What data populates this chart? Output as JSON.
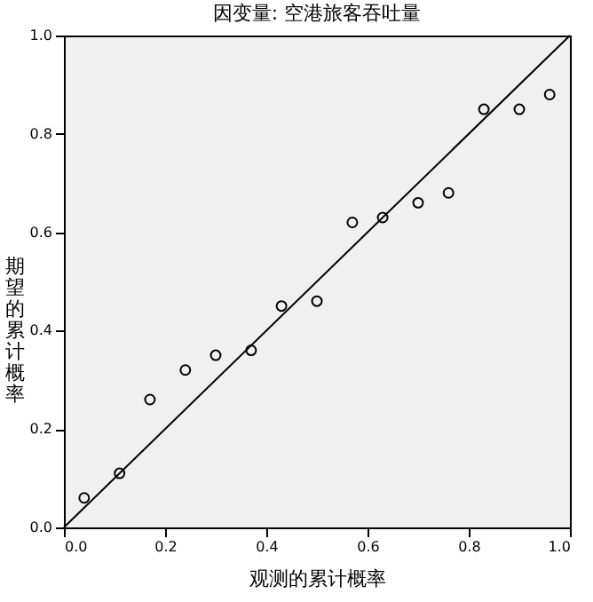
{
  "chart_data": {
    "type": "scatter",
    "title": "因变量: 空港旅客吞吐量",
    "xlabel": "观测的累计概率",
    "ylabel": "期望的累计概率",
    "xlim": [
      0,
      1
    ],
    "ylim": [
      0,
      1
    ],
    "xticks": [
      {
        "value": 0,
        "label": "0.0"
      },
      {
        "value": 0.2,
        "label": "0.2"
      },
      {
        "value": 0.4,
        "label": "0.4"
      },
      {
        "value": 0.6,
        "label": "0.6"
      },
      {
        "value": 0.8,
        "label": "0.8"
      },
      {
        "value": 1,
        "label": "1.0"
      }
    ],
    "yticks": [
      {
        "value": 0,
        "label": "0.0"
      },
      {
        "value": 0.2,
        "label": "0.2"
      },
      {
        "value": 0.4,
        "label": "0.4"
      },
      {
        "value": 0.6,
        "label": "0.6"
      },
      {
        "value": 0.8,
        "label": "0.8"
      },
      {
        "value": 1,
        "label": "1.0"
      }
    ],
    "grid": false,
    "series": [
      {
        "type": "scatter",
        "color": "#000000",
        "marker": "circle",
        "x": [
          0.04,
          0.11,
          0.17,
          0.24,
          0.3,
          0.37,
          0.43,
          0.5,
          0.57,
          0.63,
          0.7,
          0.76,
          0.83,
          0.9,
          0.96
        ],
        "values": [
          0.06,
          0.11,
          0.26,
          0.32,
          0.35,
          0.36,
          0.45,
          0.46,
          0.62,
          0.63,
          0.66,
          0.68,
          0.85,
          0.85,
          0.88
        ]
      },
      {
        "type": "line",
        "color": "#000000",
        "line_style": "solid",
        "x": [
          0,
          1
        ],
        "values": [
          0,
          1
        ]
      }
    ]
  }
}
